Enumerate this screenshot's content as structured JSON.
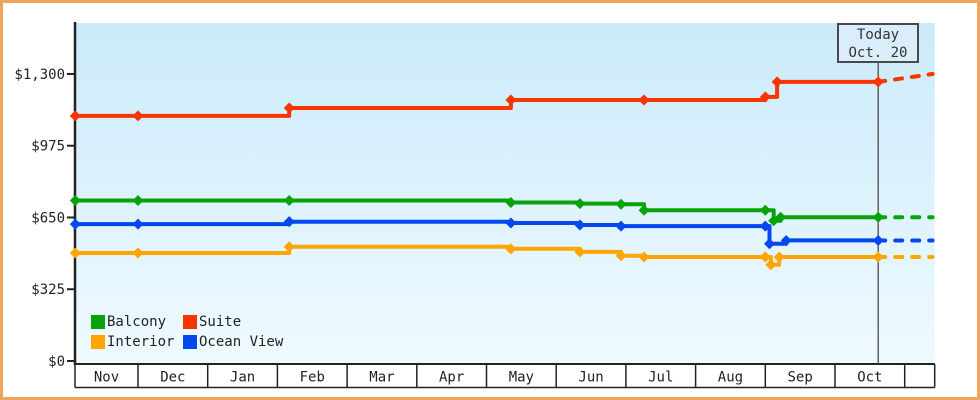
{
  "widget": {
    "kind": "cruise-price-history-chart"
  },
  "colors": {
    "frame": "#efa55e",
    "page_bg": "#ffffff",
    "plot_bg_top": "#cbeafa",
    "plot_bg_bottom": "#effaff",
    "axis": "#222222",
    "text": "#222222",
    "strip_bg": "#ffffff",
    "strip_border": "#222222",
    "today_line": "#555555",
    "today_box_border": "#4a4a4a",
    "today_box_fill": "#d9edfa"
  },
  "annotation": {
    "line1": "Today",
    "line2": "Oct. 20"
  },
  "chart_data": {
    "type": "line",
    "title": "",
    "xlabel": "",
    "ylabel": "",
    "x_months": [
      "Nov",
      "Dec",
      "Jan",
      "Feb",
      "Mar",
      "Apr",
      "May",
      "Jun",
      "Jul",
      "Aug",
      "Sep",
      "Oct"
    ],
    "y_ticks": [
      {
        "value": 0,
        "label": "$0"
      },
      {
        "value": 325,
        "label": "$325"
      },
      {
        "value": 650,
        "label": "$650"
      },
      {
        "value": 975,
        "label": "$975"
      },
      {
        "value": 1300,
        "label": "$1,300"
      }
    ],
    "ylim": [
      0,
      1540
    ],
    "grid": false,
    "legend_position": "bottom-left",
    "today": {
      "month_index": 11.62,
      "date_label": "Oct. 20"
    },
    "projection_end_month_index": 12.4,
    "series": [
      {
        "name": "Balcony",
        "color": "#07a307",
        "points": [
          [
            0.1,
            727
          ],
          [
            1.0,
            727
          ],
          [
            3.17,
            727
          ],
          [
            6.35,
            718
          ],
          [
            7.34,
            713
          ],
          [
            7.93,
            710
          ],
          [
            8.26,
            683
          ],
          [
            10.0,
            683
          ],
          [
            10.12,
            635
          ],
          [
            10.22,
            651
          ],
          [
            11.62,
            651
          ]
        ],
        "projection_value": 651
      },
      {
        "name": "Suite",
        "color": "#f83400",
        "points": [
          [
            0.1,
            1110
          ],
          [
            1.0,
            1110
          ],
          [
            3.17,
            1146
          ],
          [
            6.35,
            1182
          ],
          [
            8.26,
            1182
          ],
          [
            10.0,
            1196
          ],
          [
            10.17,
            1264
          ],
          [
            11.62,
            1264
          ]
        ],
        "projection_value": 1300
      },
      {
        "name": "Interior",
        "color": "#ffa502",
        "points": [
          [
            0.1,
            489
          ],
          [
            1.0,
            489
          ],
          [
            3.17,
            517
          ],
          [
            6.35,
            508
          ],
          [
            7.34,
            494
          ],
          [
            7.93,
            477
          ],
          [
            8.26,
            471
          ],
          [
            10.0,
            471
          ],
          [
            10.08,
            436
          ],
          [
            10.2,
            471
          ],
          [
            11.62,
            471
          ]
        ],
        "projection_value": 471
      },
      {
        "name": "Ocean View",
        "color": "#0347f0",
        "points": [
          [
            0.1,
            620
          ],
          [
            1.0,
            620
          ],
          [
            3.17,
            631
          ],
          [
            6.35,
            625
          ],
          [
            7.34,
            616
          ],
          [
            7.93,
            611
          ],
          [
            10.0,
            611
          ],
          [
            10.06,
            531
          ],
          [
            10.3,
            546
          ],
          [
            11.62,
            546
          ]
        ],
        "projection_value": 546
      }
    ]
  }
}
